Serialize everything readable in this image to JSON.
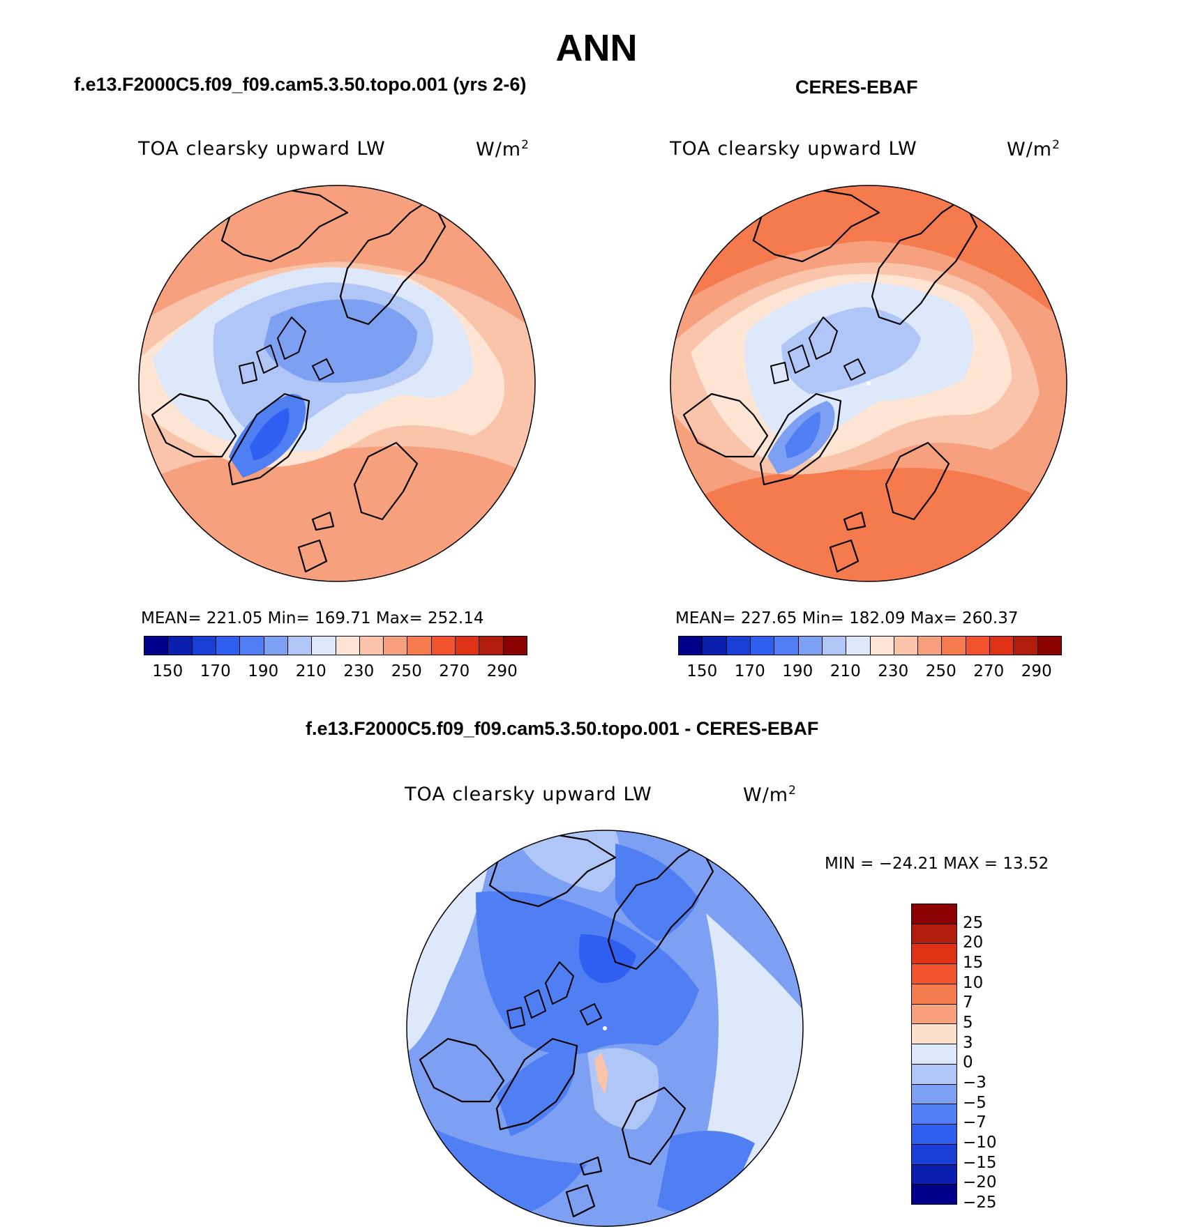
{
  "title": "ANN",
  "variable_label": "TOA clearsky upward LW",
  "units_base": "W/m",
  "units_exp": "2",
  "panels": {
    "model": {
      "case_name": "f.e13.F2000C5.f09_f09.cam5.3.50.topo.001 (yrs 2-6)",
      "stats": "MEAN= 221.05   Min= 169.71   Max= 252.14",
      "colorbar_ticks": [
        "150",
        "170",
        "190",
        "210",
        "230",
        "250",
        "270",
        "290"
      ]
    },
    "obs": {
      "case_name": "CERES-EBAF",
      "stats": "MEAN= 227.65   Min= 182.09   Max= 260.37",
      "colorbar_ticks": [
        "150",
        "170",
        "190",
        "210",
        "230",
        "250",
        "270",
        "290"
      ]
    },
    "diff": {
      "case_name": "f.e13.F2000C5.f09_f09.cam5.3.50.topo.001 - CERES-EBAF",
      "minmax": "MIN = −24.21 MAX =  13.52",
      "colorbar_ticks": [
        "25",
        "20",
        "15",
        "10",
        "7",
        "5",
        "3",
        "0",
        "−3",
        "−5",
        "−7",
        "−10",
        "−15",
        "−20",
        "−25"
      ]
    }
  },
  "colors": {
    "abs_scale": [
      "#00008b",
      "#0a1fae",
      "#1a3fd6",
      "#2f5ff0",
      "#4f7ff2",
      "#7ea0f3",
      "#b0c6f6",
      "#dde9fb",
      "#fde4d3",
      "#f9c4aa",
      "#f6a07e",
      "#f57a4e",
      "#f2532c",
      "#df3114",
      "#b11d0a",
      "#8b0000"
    ],
    "diff_scale": [
      "#8b0000",
      "#b11d0a",
      "#df3114",
      "#f2532c",
      "#f57a4e",
      "#f9a07c",
      "#fde0cc",
      "#dde9fb",
      "#b0c6f6",
      "#7ea0f3",
      "#4f7ff2",
      "#2f5ff0",
      "#1a3fd6",
      "#0a1fae",
      "#00008b"
    ]
  },
  "map_projection": "north polar stereographic"
}
